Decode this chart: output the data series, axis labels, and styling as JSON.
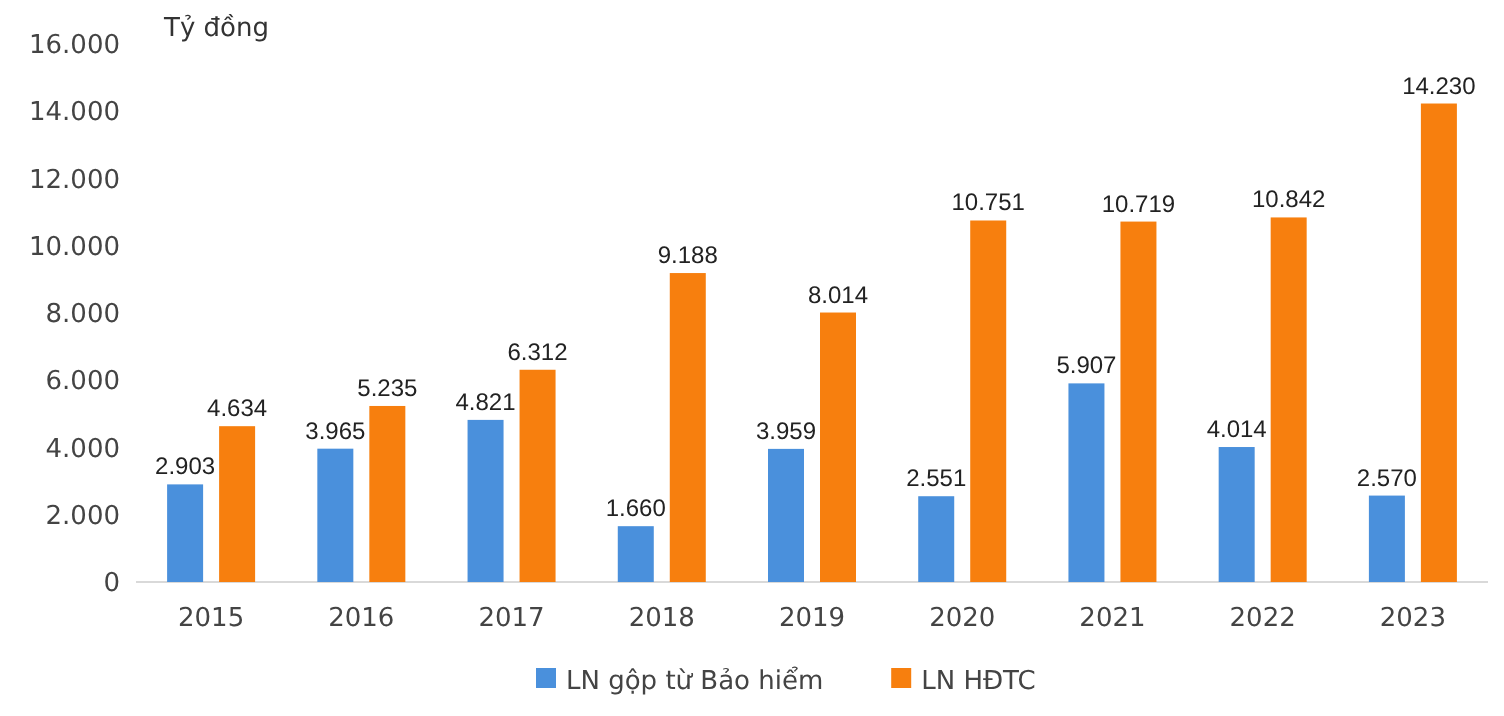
{
  "chart_data": {
    "type": "bar",
    "ylabel": "Tỷ đồng",
    "categories": [
      "2015",
      "2016",
      "2017",
      "2018",
      "2019",
      "2020",
      "2021",
      "2022",
      "2023"
    ],
    "series": [
      {
        "name": "LN gộp từ Bảo hiểm",
        "color": "#4a90dc",
        "values": [
          2903,
          3965,
          4821,
          1660,
          3959,
          2551,
          5907,
          4014,
          2570
        ],
        "value_labels": [
          "2.903",
          "3.965",
          "4.821",
          "1.660",
          "3.959",
          "2.551",
          "5.907",
          "4.014",
          "2.570"
        ]
      },
      {
        "name": "LN HĐTC",
        "color": "#f77f0e",
        "values": [
          4634,
          5235,
          6312,
          9188,
          8014,
          10751,
          10719,
          10842,
          14230
        ],
        "value_labels": [
          "4.634",
          "5.235",
          "6.312",
          "9.188",
          "8.014",
          "10.751",
          "10.719",
          "10.842",
          "14.230"
        ]
      }
    ],
    "ylim": [
      0,
      16000
    ],
    "yticks": [
      {
        "value": 0,
        "label": "0"
      },
      {
        "value": 2000,
        "label": "2.000"
      },
      {
        "value": 4000,
        "label": "4.000"
      },
      {
        "value": 6000,
        "label": "6.000"
      },
      {
        "value": 8000,
        "label": "8.000"
      },
      {
        "value": 10000,
        "label": "10.000"
      },
      {
        "value": 12000,
        "label": "12.000"
      },
      {
        "value": 14000,
        "label": "14.000"
      },
      {
        "value": 16000,
        "label": "16.000"
      }
    ],
    "legend": "bottom"
  }
}
